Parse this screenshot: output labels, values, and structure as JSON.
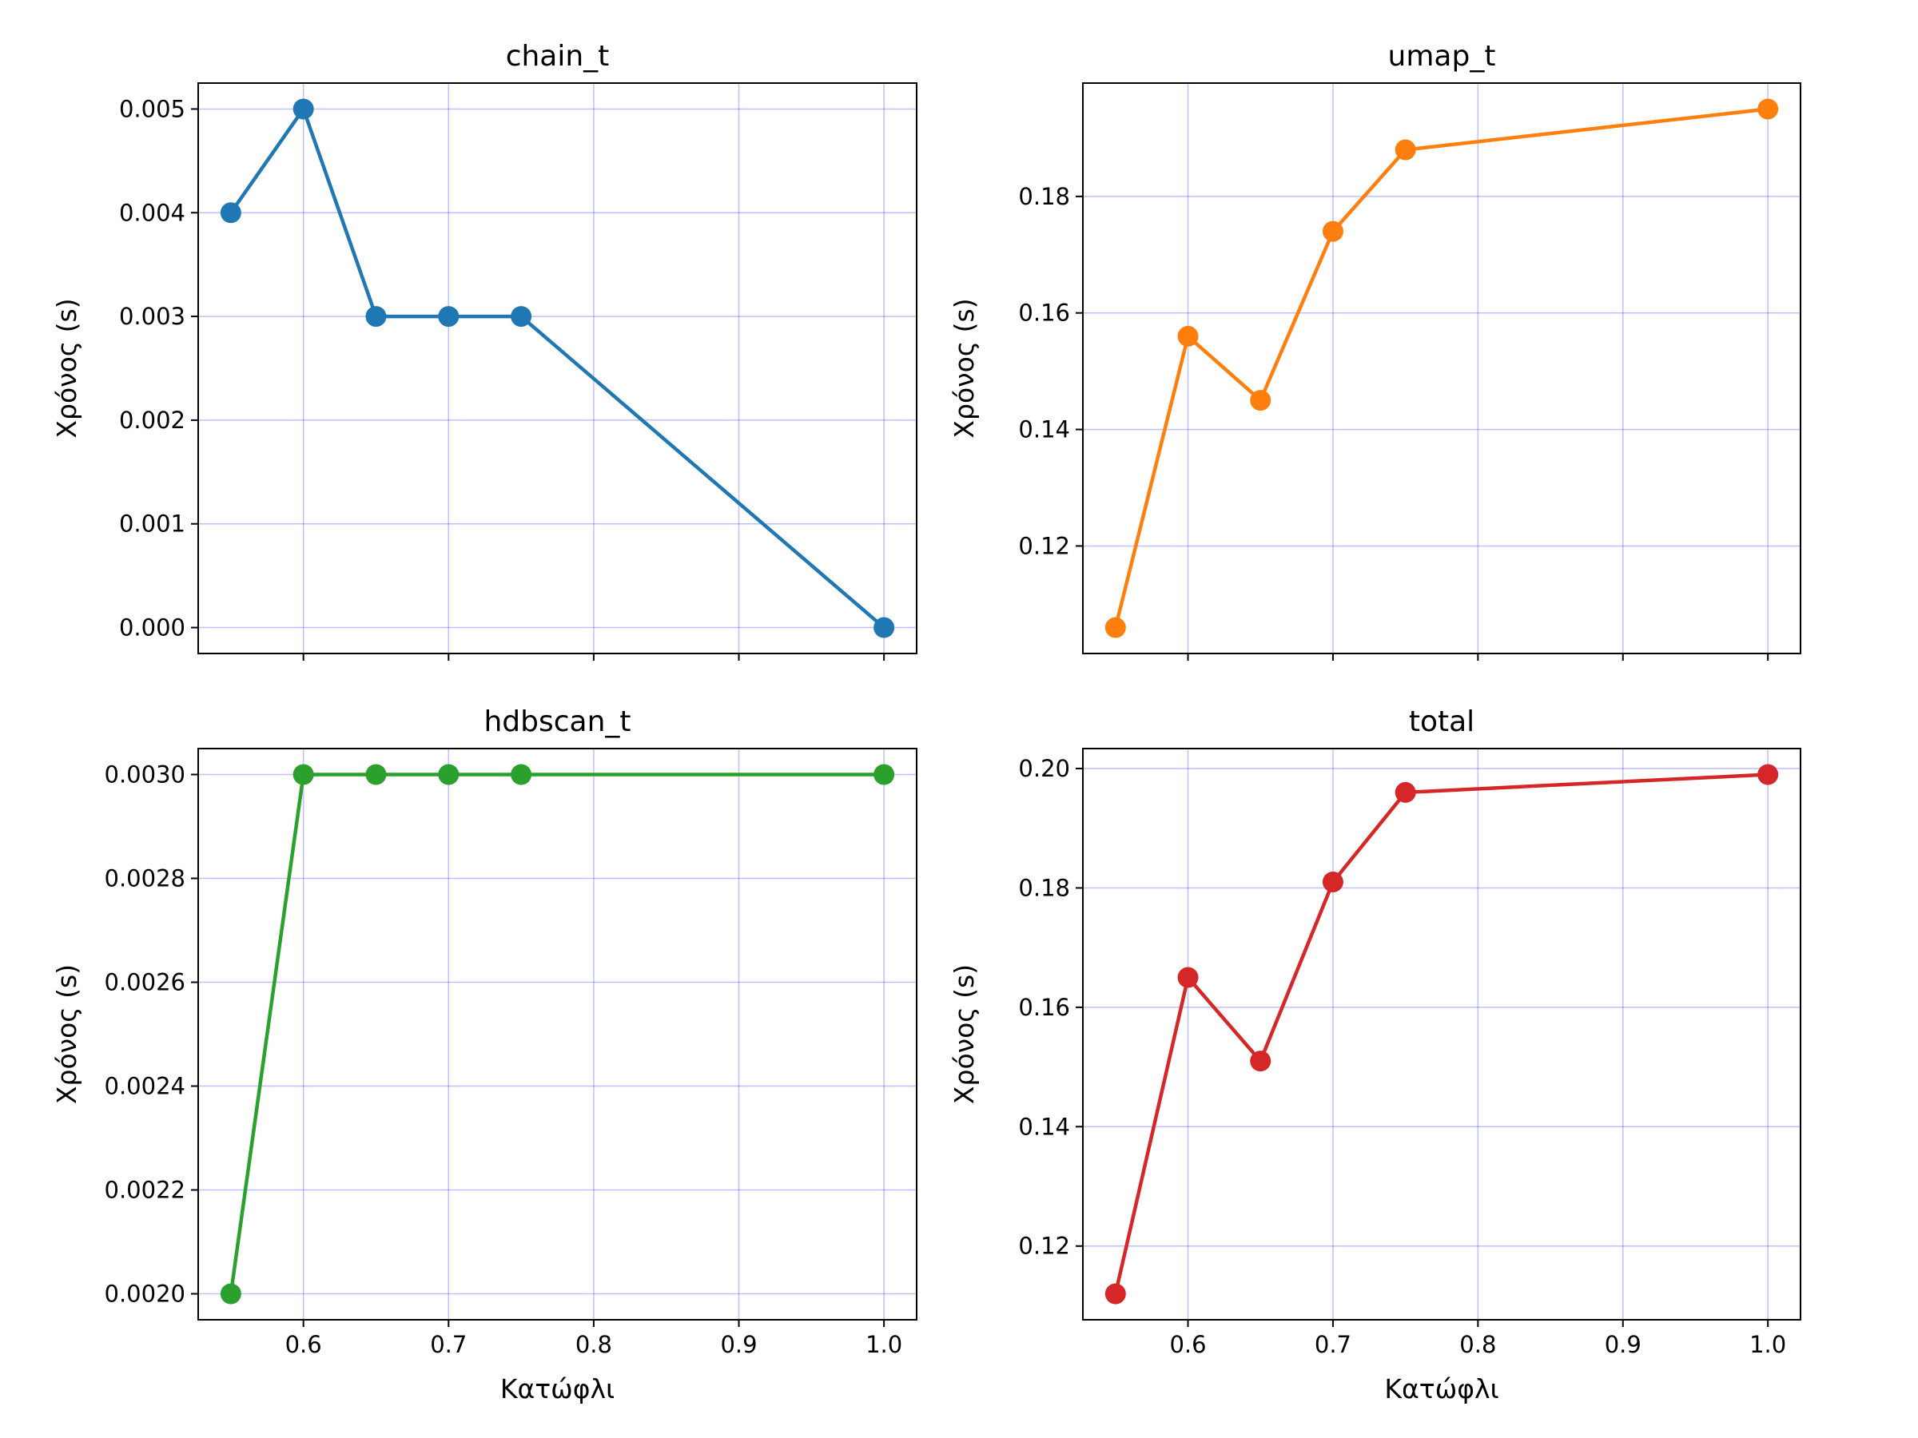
{
  "chart_data": [
    {
      "type": "line",
      "title": "chain_t",
      "xlabel": "",
      "ylabel": "Χρόνος (s)",
      "x": [
        0.55,
        0.6,
        0.65,
        0.7,
        0.75,
        1.0
      ],
      "series": [
        {
          "values": [
            0.004,
            0.005,
            0.003,
            0.003,
            0.003,
            0.0
          ]
        }
      ],
      "color": "#1f77b4",
      "xlim": [
        0.5275,
        1.0225
      ],
      "ylim": [
        -0.00025,
        0.00525
      ],
      "yticks": [
        "0.000",
        "0.001",
        "0.002",
        "0.003",
        "0.004",
        "0.005"
      ],
      "ytick_values": [
        0,
        0.001,
        0.002,
        0.003,
        0.004,
        0.005
      ],
      "xticks": [],
      "xtick_values": [
        0.6,
        0.7,
        0.8,
        0.9,
        1.0
      ],
      "grid": true
    },
    {
      "type": "line",
      "title": "umap_t",
      "xlabel": "",
      "ylabel": "Χρόνος (s)",
      "x": [
        0.55,
        0.6,
        0.65,
        0.7,
        0.75,
        1.0
      ],
      "series": [
        {
          "values": [
            0.106,
            0.156,
            0.145,
            0.174,
            0.188,
            0.195
          ]
        }
      ],
      "color": "#ff7f0e",
      "xlim": [
        0.5275,
        1.0225
      ],
      "ylim": [
        0.10155,
        0.19945
      ],
      "yticks": [
        "0.12",
        "0.14",
        "0.16",
        "0.18"
      ],
      "ytick_values": [
        0.12,
        0.14,
        0.16,
        0.18
      ],
      "xticks": [],
      "xtick_values": [
        0.6,
        0.7,
        0.8,
        0.9,
        1.0
      ],
      "grid": true
    },
    {
      "type": "line",
      "title": "hdbscan_t",
      "xlabel": "Κατώφλι",
      "ylabel": "Χρόνος (s)",
      "x": [
        0.55,
        0.6,
        0.65,
        0.7,
        0.75,
        1.0
      ],
      "series": [
        {
          "values": [
            0.002,
            0.003,
            0.003,
            0.003,
            0.003,
            0.003
          ]
        }
      ],
      "color": "#2ca02c",
      "xlim": [
        0.5275,
        1.0225
      ],
      "ylim": [
        0.00195,
        0.00305
      ],
      "yticks": [
        "0.0020",
        "0.0022",
        "0.0024",
        "0.0026",
        "0.0028",
        "0.0030"
      ],
      "ytick_values": [
        0.002,
        0.0022,
        0.0024,
        0.0026,
        0.0028,
        0.003
      ],
      "xticks": [
        "0.6",
        "0.7",
        "0.8",
        "0.9",
        "1.0"
      ],
      "xtick_values": [
        0.6,
        0.7,
        0.8,
        0.9,
        1.0
      ],
      "grid": true
    },
    {
      "type": "line",
      "title": "total",
      "xlabel": "Κατώφλι",
      "ylabel": "Χρόνος (s)",
      "x": [
        0.55,
        0.6,
        0.65,
        0.7,
        0.75,
        1.0
      ],
      "series": [
        {
          "values": [
            0.112,
            0.165,
            0.151,
            0.181,
            0.196,
            0.199
          ]
        }
      ],
      "color": "#d62728",
      "xlim": [
        0.5275,
        1.0225
      ],
      "ylim": [
        0.10765,
        0.20335
      ],
      "yticks": [
        "0.12",
        "0.14",
        "0.16",
        "0.18",
        "0.20"
      ],
      "ytick_values": [
        0.12,
        0.14,
        0.16,
        0.18,
        0.2
      ],
      "xticks": [
        "0.6",
        "0.7",
        "0.8",
        "0.9",
        "1.0"
      ],
      "xtick_values": [
        0.6,
        0.7,
        0.8,
        0.9,
        1.0
      ],
      "grid": true
    }
  ]
}
